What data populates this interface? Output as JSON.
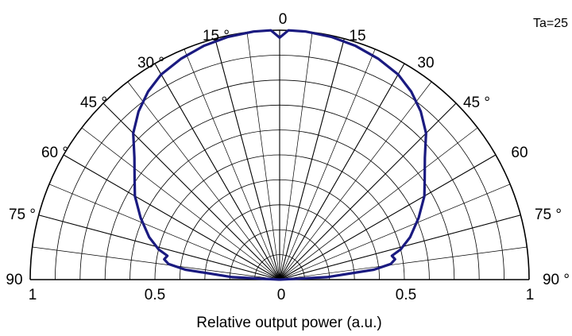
{
  "chart_data": {
    "type": "polar",
    "title": "",
    "annotation": "Ta=25",
    "xlabel": "Relative output power (a.u.)",
    "radial_ticks_left": [
      "1",
      "0.5",
      "0"
    ],
    "radial_ticks_right": [
      "0.5",
      "1"
    ],
    "angle_labels_left": [
      "15 °",
      "30 °",
      "45 °",
      "60 °",
      "75 °",
      "90"
    ],
    "angle_labels_top": "0",
    "angle_labels_right": [
      "15",
      "30",
      "45 °",
      "60",
      "75 °",
      "90 °"
    ],
    "grid": true,
    "line_color": "#1a1a80",
    "series": [
      {
        "name": "",
        "points": [
          {
            "angle": -90,
            "r": 0.0
          },
          {
            "angle": -87,
            "r": 0.19
          },
          {
            "angle": -84,
            "r": 0.38
          },
          {
            "angle": -82,
            "r": 0.45
          },
          {
            "angle": -80,
            "r": 0.47
          },
          {
            "angle": -78,
            "r": 0.46
          },
          {
            "angle": -76,
            "r": 0.5
          },
          {
            "angle": -72,
            "r": 0.55
          },
          {
            "angle": -66,
            "r": 0.61
          },
          {
            "angle": -60,
            "r": 0.67
          },
          {
            "angle": -55,
            "r": 0.71
          },
          {
            "angle": -50,
            "r": 0.76
          },
          {
            "angle": -45,
            "r": 0.83
          },
          {
            "angle": -40,
            "r": 0.88
          },
          {
            "angle": -35,
            "r": 0.92
          },
          {
            "angle": -30,
            "r": 0.95
          },
          {
            "angle": -24,
            "r": 0.97
          },
          {
            "angle": -18,
            "r": 0.985
          },
          {
            "angle": -12,
            "r": 0.995
          },
          {
            "angle": -6,
            "r": 1.0
          },
          {
            "angle": -2,
            "r": 1.0
          },
          {
            "angle": 0,
            "r": 0.97
          },
          {
            "angle": 2,
            "r": 1.0
          },
          {
            "angle": 6,
            "r": 1.0
          },
          {
            "angle": 12,
            "r": 0.995
          },
          {
            "angle": 18,
            "r": 0.985
          },
          {
            "angle": 24,
            "r": 0.97
          },
          {
            "angle": 30,
            "r": 0.95
          },
          {
            "angle": 35,
            "r": 0.92
          },
          {
            "angle": 40,
            "r": 0.88
          },
          {
            "angle": 45,
            "r": 0.83
          },
          {
            "angle": 50,
            "r": 0.76
          },
          {
            "angle": 55,
            "r": 0.71
          },
          {
            "angle": 60,
            "r": 0.67
          },
          {
            "angle": 66,
            "r": 0.61
          },
          {
            "angle": 72,
            "r": 0.55
          },
          {
            "angle": 76,
            "r": 0.5
          },
          {
            "angle": 78,
            "r": 0.46
          },
          {
            "angle": 80,
            "r": 0.47
          },
          {
            "angle": 82,
            "r": 0.45
          },
          {
            "angle": 84,
            "r": 0.38
          },
          {
            "angle": 87,
            "r": 0.19
          },
          {
            "angle": 90,
            "r": 0.0
          }
        ]
      }
    ]
  }
}
